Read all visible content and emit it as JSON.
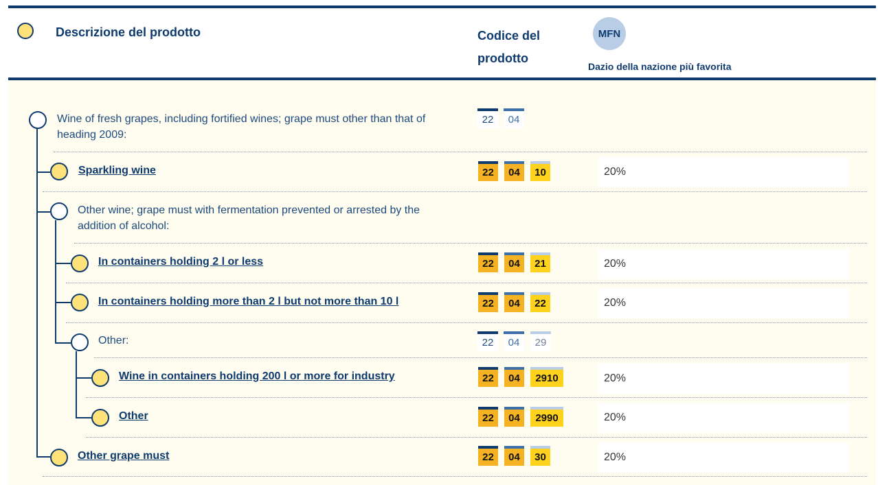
{
  "header": {
    "description_label": "Descrizione del prodotto",
    "code_label": "Codice del prodotto",
    "mfn_badge": "MFN",
    "mfn_label": "Dazio della nazione più favorita"
  },
  "colors": {
    "navy": "#0e3a6e",
    "accent_yellow": "#ffe27a",
    "code_orange": "#f5b324",
    "code_yellow": "#ffd21e",
    "body_bg": "#fffdf0"
  },
  "rows": [
    {
      "label": "Wine of fresh grapes, including fortified wines; grape must other than that of heading 2009:",
      "link": false,
      "codes": [
        "22",
        "04"
      ],
      "rate": ""
    },
    {
      "label": "Sparkling wine",
      "link": true,
      "codes": [
        "22",
        "04",
        "10"
      ],
      "rate": "20%"
    },
    {
      "label": "Other wine; grape must with fermentation prevented or arrested by the addition of alcohol:",
      "link": false,
      "codes": [],
      "rate": ""
    },
    {
      "label": "In containers holding 2 l or less",
      "link": true,
      "codes": [
        "22",
        "04",
        "21"
      ],
      "rate": "20%"
    },
    {
      "label": "In containers holding more than 2 l but not more than 10 l",
      "link": true,
      "codes": [
        "22",
        "04",
        "22"
      ],
      "rate": "20%"
    },
    {
      "label": "Other:",
      "link": false,
      "codes": [
        "22",
        "04",
        "29"
      ],
      "rate": ""
    },
    {
      "label": "Wine in containers holding 200 l or more for industry",
      "link": true,
      "codes": [
        "22",
        "04",
        "2910"
      ],
      "rate": "20%"
    },
    {
      "label": "Other",
      "link": true,
      "codes": [
        "22",
        "04",
        "2990"
      ],
      "rate": "20%"
    },
    {
      "label": "Other grape must",
      "link": true,
      "codes": [
        "22",
        "04",
        "30"
      ],
      "rate": "20%"
    }
  ]
}
